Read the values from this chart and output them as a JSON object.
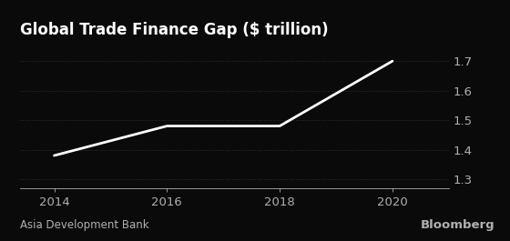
{
  "title": "Global Trade Finance Gap ($ trillion)",
  "x_values": [
    2014,
    2016,
    2018,
    2020
  ],
  "y_values": [
    1.38,
    1.48,
    1.48,
    1.7
  ],
  "xlim": [
    2013.4,
    2021.0
  ],
  "ylim": [
    1.27,
    1.76
  ],
  "yticks": [
    1.3,
    1.4,
    1.5,
    1.6,
    1.7
  ],
  "xticks": [
    2014,
    2016,
    2018,
    2020
  ],
  "line_color": "#ffffff",
  "background_color": "#0a0a0a",
  "text_color": "#b0b0b0",
  "grid_color": "#3a3a3a",
  "title_color": "#ffffff",
  "source_label": "Asia Development Bank",
  "watermark": "Bloomberg",
  "title_fontsize": 12,
  "tick_fontsize": 9.5,
  "source_fontsize": 8.5,
  "line_width": 2.0
}
